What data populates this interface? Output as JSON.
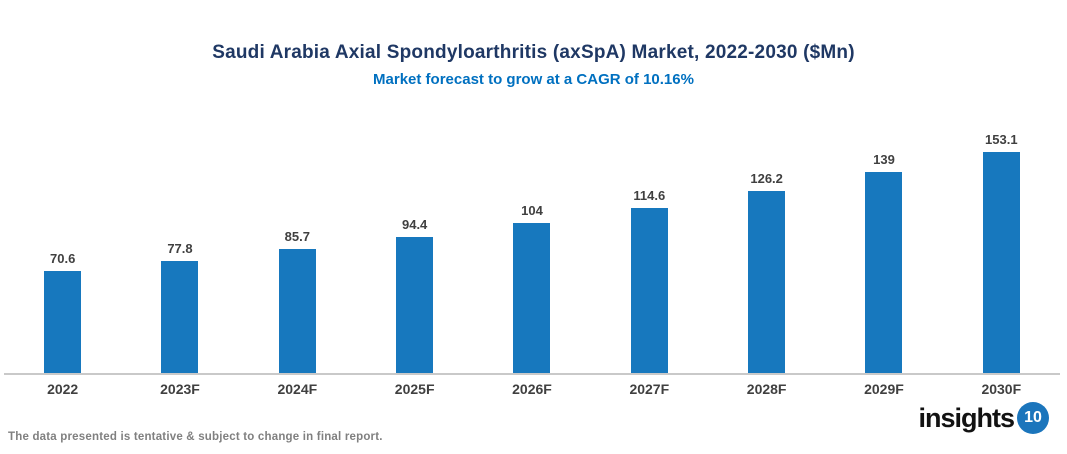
{
  "header": {
    "title": "Saudi Arabia Axial Spondyloarthritis (axSpA) Market, 2022-2030 ($Mn)",
    "subtitle": "Market forecast to grow at a CAGR of 10.16%"
  },
  "chart_data": {
    "type": "bar",
    "categories": [
      "2022",
      "2023F",
      "2024F",
      "2025F",
      "2026F",
      "2027F",
      "2028F",
      "2029F",
      "2030F"
    ],
    "values": [
      70.6,
      77.8,
      85.7,
      94.4,
      104,
      114.6,
      126.2,
      139,
      153.1
    ],
    "title": "Saudi Arabia Axial Spondyloarthritis (axSpA) Market, 2022-2030 ($Mn)",
    "subtitle": "Market forecast to grow at a CAGR of 10.16%",
    "xlabel": "",
    "ylabel": "",
    "ylim": [
      0,
      160
    ],
    "grid": false,
    "legend": false,
    "data_labels": true,
    "bar_color": "#1778BE"
  },
  "colors": {
    "title": "#1F3864",
    "subtitle": "#0070C0",
    "bar": "#1778BE",
    "value_label": "#404040",
    "axis_line": "#C9C9C9",
    "footer_text": "#808080",
    "logo_circle": "#1B75BC"
  },
  "footer": {
    "note": "The data presented is tentative & subject to change in final report.",
    "logo_text": "insights",
    "logo_badge": "10"
  }
}
